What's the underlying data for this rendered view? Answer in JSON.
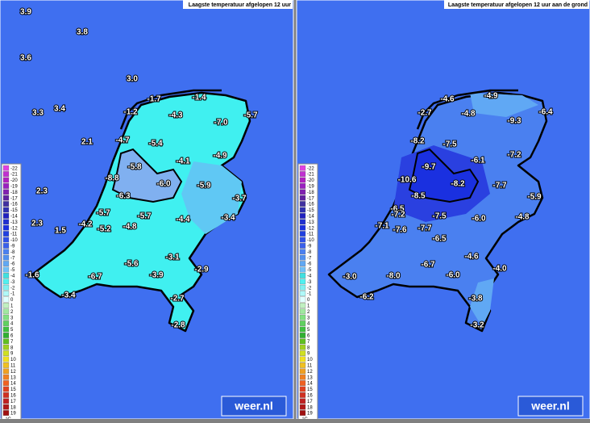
{
  "panels": [
    {
      "title": "Laagste temperatuur afgelopen 12 uur",
      "labels": [
        "3.9",
        "3.8",
        "3.6",
        "3.0",
        "3.3",
        "3.4",
        "-1.2",
        "-1.7",
        "-1.4",
        "-4.3",
        "-7.0",
        "-5.7",
        "2.1",
        "-4.7",
        "-5.4",
        "-4.9",
        "-4.1",
        "-5.8",
        "-8.8",
        "-6.0",
        "-5.9",
        "2.3",
        "-6.3",
        "-3.7",
        "-5.7",
        "-5.7",
        "-4.4",
        "-3.4",
        "2.3",
        "-4.2",
        "-5.2",
        "-4.8",
        "1.5",
        "-5.6",
        "-3.1",
        "-2.9",
        "-1.6",
        "-6.7",
        "-3.9",
        "-3.4",
        "-2.7",
        "-2.8"
      ]
    },
    {
      "title": "Laagste temperatuur afgelopen 12 uur aan de grond",
      "labels": [
        "-4.6",
        "-4.9",
        "-2.7",
        "-4.8",
        "-6.4",
        "-9.3",
        "-8.2",
        "-7.5",
        "-7.2",
        "-6.1",
        "-9.7",
        "-10.6",
        "-8.2",
        "-7.7",
        "-8.5",
        "-5.9",
        "-6.5",
        "-7.2",
        "-7.5",
        "-6.0",
        "-4.8",
        "-7.1",
        "-7.6",
        "-7.7",
        "-6.5",
        "-4.6",
        "-6.7",
        "-4.0",
        "-3.0",
        "-8.0",
        "-6.0",
        "-6.2",
        "-3.8",
        "-3.2"
      ]
    }
  ],
  "legend": {
    "labels": [
      -22,
      -21,
      -20,
      -19,
      -18,
      -17,
      -16,
      -15,
      -14,
      -13,
      -12,
      -11,
      -10,
      -9,
      -8,
      -7,
      -6,
      -5,
      -4,
      -3,
      -2,
      -1,
      0,
      1,
      2,
      3,
      4,
      5,
      6,
      7,
      8,
      9,
      10,
      11,
      12,
      13,
      14,
      15,
      16,
      17,
      18,
      19
    ],
    "colors": [
      "#e040e0",
      "#c030d0",
      "#b020c0",
      "#9a20c0",
      "#8020b0",
      "#6020a0",
      "#4030a0",
      "#3030b0",
      "#2020c0",
      "#2030d0",
      "#1a30e0",
      "#2040e0",
      "#3050e8",
      "#3a60ec",
      "#4a80f0",
      "#5090f0",
      "#60a8f4",
      "#70c0f8",
      "#40e0e0",
      "#50f0f0",
      "#80f0f0",
      "#b0f8f8",
      "#e0ffff",
      "#c0f0c0",
      "#a0e8a0",
      "#80e080",
      "#60d060",
      "#40c040",
      "#30b030",
      "#60c020",
      "#a0d020",
      "#d0e020",
      "#f0e020",
      "#f0c020",
      "#f0a020",
      "#f08020",
      "#f06020",
      "#e04020",
      "#d03020",
      "#c02020",
      "#b01818",
      "#a01010"
    ],
    "unit": "°C"
  },
  "logo": "weer.nl"
}
